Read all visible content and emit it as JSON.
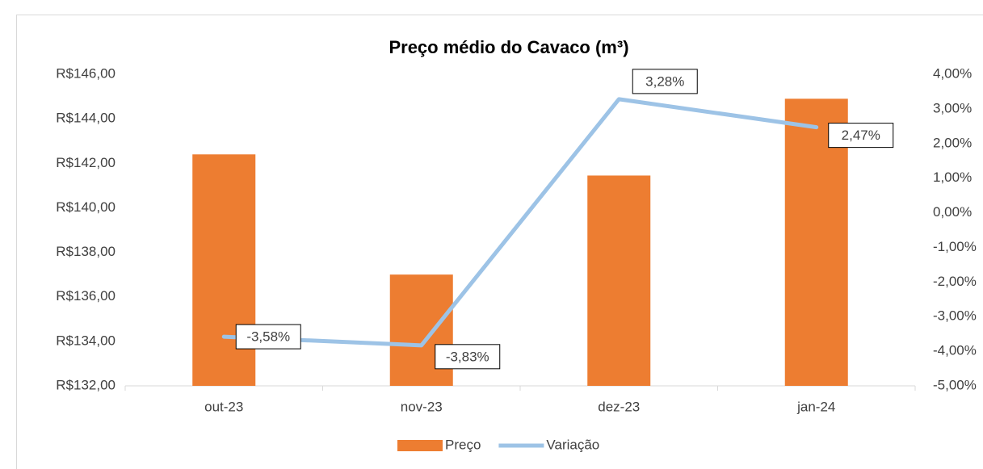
{
  "chart_data": {
    "type": "bar",
    "title": "Preço médio do Cavaco (m³)",
    "categories": [
      "out-23",
      "nov-23",
      "dez-23",
      "jan-24"
    ],
    "series": [
      {
        "name": "Preço",
        "type": "bar",
        "color": "#ed7d31",
        "values": [
          142.4,
          137.0,
          141.45,
          144.9
        ]
      },
      {
        "name": "Variação",
        "type": "line",
        "axis": "y2",
        "color": "#9dc3e6",
        "values": [
          -3.58,
          -3.83,
          3.28,
          2.47
        ],
        "value_labels": [
          "-3,58%",
          "-3,83%",
          "3,28%",
          "2,47%"
        ]
      }
    ],
    "ylim": [
      132,
      146
    ],
    "yticks": [
      {
        "value": 132,
        "label": "R$132,00"
      },
      {
        "value": 134,
        "label": "R$134,00"
      },
      {
        "value": 136,
        "label": "R$136,00"
      },
      {
        "value": 138,
        "label": "R$138,00"
      },
      {
        "value": 140,
        "label": "R$140,00"
      },
      {
        "value": 142,
        "label": "R$142,00"
      },
      {
        "value": 144,
        "label": "R$144,00"
      },
      {
        "value": 146,
        "label": "R$146,00"
      }
    ],
    "y2lim": [
      -5,
      4
    ],
    "y2ticks": [
      {
        "value": -5,
        "label": "-5,00%"
      },
      {
        "value": -4,
        "label": "-4,00%"
      },
      {
        "value": -3,
        "label": "-3,00%"
      },
      {
        "value": -2,
        "label": "-2,00%"
      },
      {
        "value": -1,
        "label": "-1,00%"
      },
      {
        "value": 0,
        "label": "0,00%"
      },
      {
        "value": 1,
        "label": "1,00%"
      },
      {
        "value": 2,
        "label": "2,00%"
      },
      {
        "value": 3,
        "label": "3,00%"
      },
      {
        "value": 4,
        "label": "4,00%"
      }
    ],
    "legend": "bottom"
  }
}
